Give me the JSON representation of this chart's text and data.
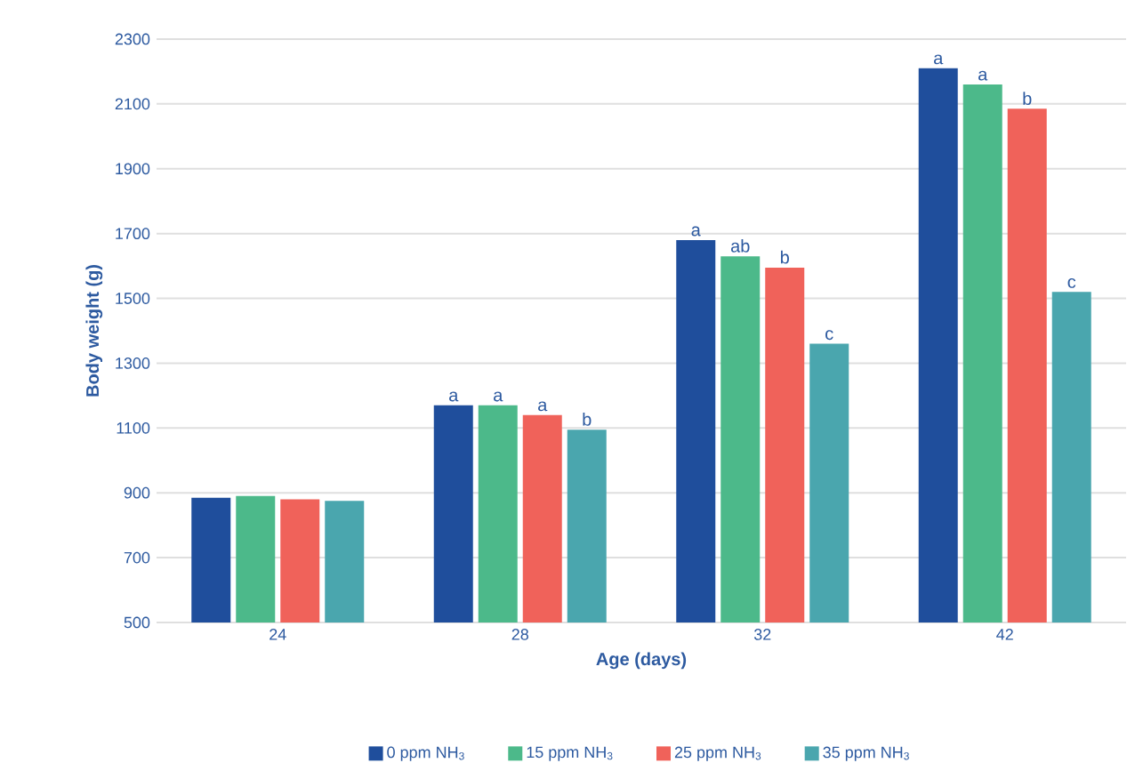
{
  "chart_data": {
    "type": "bar",
    "xlabel": "Age (days)",
    "ylabel": "Body weight (g)",
    "categories": [
      "24",
      "28",
      "32",
      "42"
    ],
    "series": [
      {
        "name": "0 ppm NH$_{3}$",
        "color": "#1f4e9c",
        "values": [
          885,
          1170,
          1680,
          2210
        ],
        "value_labels": [
          null,
          "a",
          "a",
          "a"
        ]
      },
      {
        "name": "15 ppm NH$_{3}$",
        "color": "#4cb98a",
        "values": [
          890,
          1170,
          1630,
          2160
        ],
        "value_labels": [
          null,
          "a",
          "ab",
          "a"
        ]
      },
      {
        "name": "25 ppm NH$_{3}$",
        "color": "#f0625a",
        "values": [
          880,
          1140,
          1595,
          2085
        ],
        "value_labels": [
          null,
          "a",
          "b",
          "b"
        ]
      },
      {
        "name": "35 ppm NH$_{3}$",
        "color": "#4aa6ae",
        "values": [
          875,
          1095,
          1360,
          1520
        ],
        "value_labels": [
          null,
          "b",
          "c",
          "c"
        ]
      }
    ],
    "ylim": [
      500,
      2300
    ],
    "yticks": [
      500,
      700,
      900,
      1100,
      1300,
      1500,
      1700,
      1900,
      2100,
      2300
    ],
    "grid": "y",
    "legend": "bottom"
  }
}
